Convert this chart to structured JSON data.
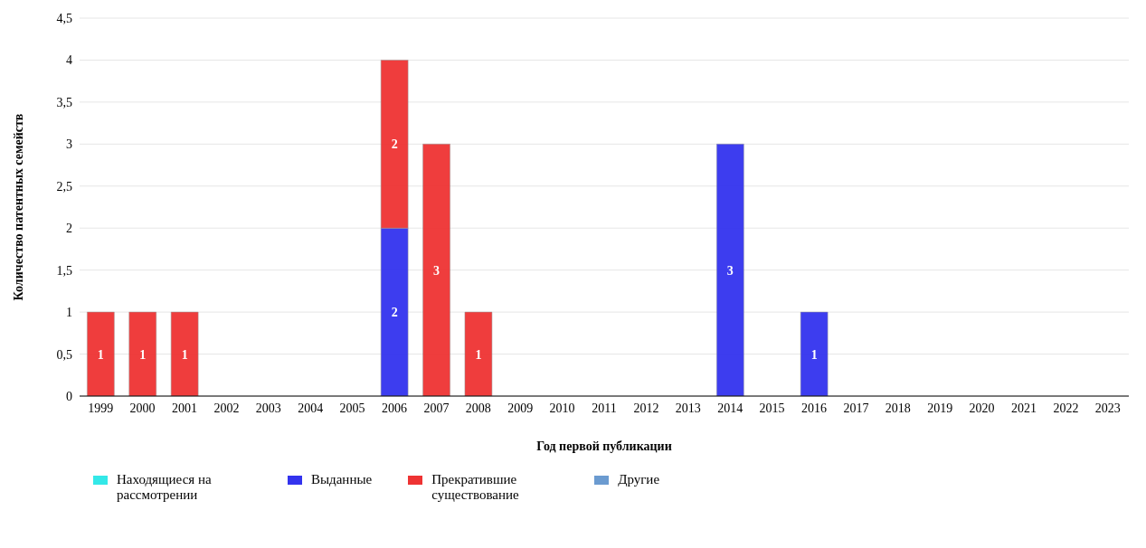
{
  "chart_data": {
    "type": "bar",
    "stacked": true,
    "xlabel": "Год первой публикации",
    "ylabel": "Количество патентных семейств",
    "categories": [
      "1999",
      "2000",
      "2001",
      "2002",
      "2003",
      "2004",
      "2005",
      "2006",
      "2007",
      "2008",
      "2009",
      "2010",
      "2011",
      "2012",
      "2013",
      "2014",
      "2015",
      "2016",
      "2017",
      "2018",
      "2019",
      "2020",
      "2021",
      "2022",
      "2023"
    ],
    "series": [
      {
        "name": "Находящиеся на рассмотрении",
        "color": "#33e8e8",
        "values": [
          null,
          null,
          null,
          null,
          null,
          null,
          null,
          null,
          null,
          null,
          null,
          null,
          null,
          null,
          null,
          null,
          null,
          null,
          null,
          null,
          null,
          null,
          null,
          null,
          null
        ]
      },
      {
        "name": "Выданные",
        "color": "#3333ee",
        "values": [
          null,
          null,
          null,
          null,
          null,
          null,
          null,
          2,
          null,
          null,
          null,
          null,
          null,
          null,
          null,
          3,
          null,
          1,
          null,
          null,
          null,
          null,
          null,
          null,
          null
        ]
      },
      {
        "name": "Прекратившие существование",
        "color": "#ee3333",
        "values": [
          1,
          1,
          1,
          null,
          null,
          null,
          null,
          2,
          3,
          1,
          null,
          null,
          null,
          null,
          null,
          null,
          null,
          null,
          null,
          null,
          null,
          null,
          null,
          null,
          null
        ]
      },
      {
        "name": "Другие",
        "color": "#6b9bd0",
        "values": [
          null,
          null,
          null,
          null,
          null,
          null,
          null,
          null,
          null,
          null,
          null,
          null,
          null,
          null,
          null,
          null,
          null,
          null,
          null,
          null,
          null,
          null,
          null,
          null,
          null
        ]
      }
    ],
    "ylim": [
      0,
      4.5
    ],
    "yticks": [
      0,
      {
        "value": 0.5,
        "label": "0,5"
      },
      1,
      {
        "value": 1.5,
        "label": "1,5"
      },
      2,
      {
        "value": 2.5,
        "label": "2,5"
      },
      3,
      {
        "value": 3.5,
        "label": "3,5"
      },
      4,
      {
        "value": 4.5,
        "label": "4,5"
      }
    ],
    "grid": "y",
    "legend": "bottom",
    "data_labels": true
  }
}
